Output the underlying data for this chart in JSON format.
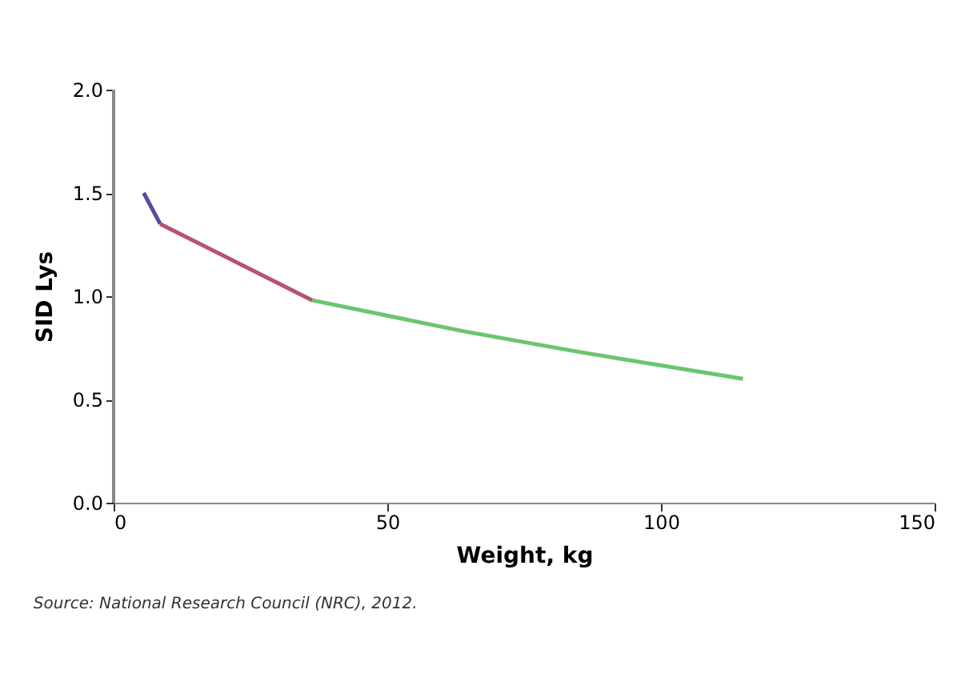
{
  "chart_data": {
    "type": "line",
    "xlabel": "Weight, kg",
    "ylabel": "SID Lys",
    "xlim": [
      0,
      150
    ],
    "xticks": [
      0,
      50,
      100,
      150
    ],
    "ylim": [
      0,
      2
    ],
    "yticks": [
      {
        "value": 0,
        "label": "0.0"
      },
      0.5,
      {
        "value": 1,
        "label": "1.0"
      },
      1.5,
      {
        "value": 2,
        "label": "2.0"
      }
    ],
    "grid": false,
    "marker": "none",
    "line_style": "solid",
    "series": [
      {
        "color": "#5b4a9b",
        "x": [
          5.5,
          8.5
        ],
        "values": [
          1.5,
          1.35
        ]
      },
      {
        "color": "#b5546e",
        "x": [
          8.5,
          36.3
        ],
        "values": [
          1.35,
          0.98
        ]
      },
      {
        "color": "#6cc56f",
        "x": [
          36.3,
          64,
          85,
          115
        ],
        "values": [
          0.98,
          0.83,
          0.73,
          0.6
        ]
      }
    ],
    "annotations": [
      "Source: National Research Council (NRC), 2012."
    ]
  }
}
